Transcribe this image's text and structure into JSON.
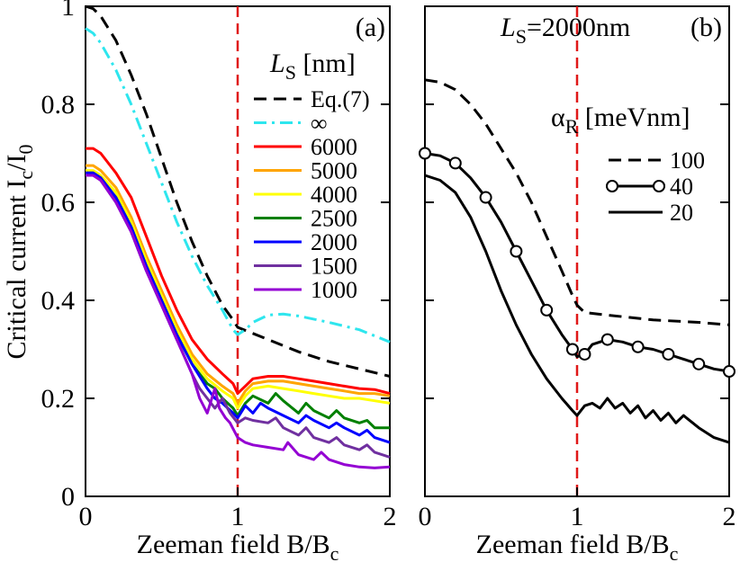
{
  "chart_data": [
    {
      "type": "line",
      "panel_label": "(a)",
      "xlabel_main": "Zeeman field B/B",
      "xlabel_sub": "c",
      "ylabel_main": "Critical current I",
      "ylabel_sub1": "c",
      "ylabel_mid": "/I",
      "ylabel_sub2": "0",
      "xlim": [
        0,
        2
      ],
      "ylim": [
        0,
        1
      ],
      "xticks": [
        0,
        1,
        2
      ],
      "yticks": [
        0,
        0.2,
        0.4,
        0.6,
        0.8,
        1
      ],
      "xtick_labels": [
        "0",
        "1",
        "2"
      ],
      "ytick_labels": [
        "0",
        "0.2",
        "0.4",
        "0.6",
        "0.8",
        "1"
      ],
      "vline_x": 1,
      "legend_title_main": "L",
      "legend_title_sub": "S",
      "legend_title_unit": " [nm]",
      "legend_position": "top-right",
      "series": [
        {
          "name": "Eq.(7)",
          "color": "#000000",
          "dash": "dash",
          "x": [
            0,
            0.05,
            0.1,
            0.2,
            0.3,
            0.4,
            0.5,
            0.6,
            0.7,
            0.8,
            0.9,
            0.97,
            1.0,
            1.2,
            1.4,
            1.6,
            1.8,
            2.0
          ],
          "y": [
            1.0,
            0.995,
            0.98,
            0.93,
            0.86,
            0.78,
            0.69,
            0.6,
            0.52,
            0.45,
            0.39,
            0.36,
            0.345,
            0.32,
            0.295,
            0.275,
            0.26,
            0.245
          ]
        },
        {
          "name": "∞",
          "color": "#2ee6ee",
          "dash": "dashdot",
          "x": [
            0,
            0.05,
            0.1,
            0.2,
            0.3,
            0.4,
            0.5,
            0.6,
            0.7,
            0.8,
            0.9,
            0.97,
            1.0,
            1.05,
            1.1,
            1.2,
            1.3,
            1.4,
            1.6,
            1.8,
            2.0
          ],
          "y": [
            0.955,
            0.945,
            0.925,
            0.87,
            0.8,
            0.72,
            0.64,
            0.56,
            0.49,
            0.43,
            0.38,
            0.34,
            0.33,
            0.34,
            0.355,
            0.37,
            0.372,
            0.368,
            0.355,
            0.34,
            0.315
          ]
        },
        {
          "name": "6000",
          "color": "#ff0000",
          "dash": "solid",
          "x": [
            0,
            0.05,
            0.1,
            0.2,
            0.3,
            0.4,
            0.5,
            0.6,
            0.7,
            0.8,
            0.9,
            0.97,
            1.0,
            1.05,
            1.1,
            1.2,
            1.3,
            1.4,
            1.5,
            1.6,
            1.7,
            1.8,
            1.9,
            2.0
          ],
          "y": [
            0.71,
            0.71,
            0.7,
            0.66,
            0.61,
            0.53,
            0.45,
            0.38,
            0.32,
            0.28,
            0.25,
            0.23,
            0.21,
            0.225,
            0.24,
            0.245,
            0.245,
            0.24,
            0.235,
            0.23,
            0.225,
            0.22,
            0.218,
            0.21
          ]
        },
        {
          "name": "5000",
          "color": "#ffa500",
          "dash": "solid",
          "x": [
            0,
            0.05,
            0.1,
            0.2,
            0.3,
            0.4,
            0.5,
            0.6,
            0.7,
            0.8,
            0.9,
            0.97,
            1.0,
            1.05,
            1.1,
            1.2,
            1.3,
            1.4,
            1.5,
            1.6,
            1.7,
            1.8,
            1.9,
            2.0
          ],
          "y": [
            0.675,
            0.675,
            0.665,
            0.63,
            0.57,
            0.49,
            0.42,
            0.35,
            0.29,
            0.25,
            0.225,
            0.21,
            0.19,
            0.215,
            0.23,
            0.235,
            0.235,
            0.23,
            0.225,
            0.22,
            0.215,
            0.21,
            0.21,
            0.205
          ]
        },
        {
          "name": "4000",
          "color": "#ffff00",
          "dash": "solid",
          "x": [
            0,
            0.05,
            0.1,
            0.2,
            0.3,
            0.4,
            0.5,
            0.6,
            0.7,
            0.8,
            0.9,
            0.97,
            1.0,
            1.05,
            1.1,
            1.2,
            1.3,
            1.4,
            1.5,
            1.6,
            1.7,
            1.8,
            1.9,
            2.0
          ],
          "y": [
            0.665,
            0.665,
            0.655,
            0.62,
            0.56,
            0.48,
            0.41,
            0.34,
            0.28,
            0.24,
            0.215,
            0.2,
            0.18,
            0.205,
            0.22,
            0.225,
            0.22,
            0.215,
            0.21,
            0.205,
            0.2,
            0.2,
            0.195,
            0.19
          ]
        },
        {
          "name": "2500",
          "color": "#008000",
          "dash": "solid",
          "x": [
            0,
            0.05,
            0.1,
            0.2,
            0.3,
            0.4,
            0.5,
            0.6,
            0.7,
            0.8,
            0.85,
            0.9,
            0.97,
            1.0,
            1.05,
            1.1,
            1.2,
            1.25,
            1.3,
            1.4,
            1.45,
            1.5,
            1.6,
            1.65,
            1.7,
            1.8,
            1.85,
            1.9,
            2.0
          ],
          "y": [
            0.66,
            0.66,
            0.65,
            0.61,
            0.55,
            0.47,
            0.4,
            0.33,
            0.27,
            0.23,
            0.22,
            0.2,
            0.18,
            0.165,
            0.19,
            0.205,
            0.19,
            0.21,
            0.195,
            0.17,
            0.19,
            0.175,
            0.16,
            0.175,
            0.16,
            0.15,
            0.155,
            0.14,
            0.14
          ]
        },
        {
          "name": "2000",
          "color": "#0000ff",
          "dash": "solid",
          "x": [
            0,
            0.05,
            0.1,
            0.2,
            0.3,
            0.4,
            0.5,
            0.6,
            0.7,
            0.8,
            0.85,
            0.9,
            0.97,
            1.0,
            1.05,
            1.1,
            1.15,
            1.2,
            1.3,
            1.4,
            1.45,
            1.5,
            1.6,
            1.65,
            1.7,
            1.8,
            1.85,
            1.9,
            2.0
          ],
          "y": [
            0.66,
            0.66,
            0.65,
            0.61,
            0.55,
            0.47,
            0.4,
            0.33,
            0.27,
            0.22,
            0.2,
            0.19,
            0.17,
            0.16,
            0.185,
            0.17,
            0.19,
            0.18,
            0.165,
            0.15,
            0.165,
            0.155,
            0.14,
            0.15,
            0.14,
            0.125,
            0.135,
            0.12,
            0.11
          ]
        },
        {
          "name": "1500",
          "color": "#7030a0",
          "dash": "solid",
          "x": [
            0,
            0.05,
            0.1,
            0.2,
            0.3,
            0.4,
            0.5,
            0.6,
            0.7,
            0.75,
            0.8,
            0.85,
            0.9,
            0.95,
            1.0,
            1.05,
            1.1,
            1.2,
            1.25,
            1.3,
            1.4,
            1.45,
            1.5,
            1.6,
            1.65,
            1.7,
            1.8,
            1.85,
            1.9,
            2.0
          ],
          "y": [
            0.655,
            0.655,
            0.645,
            0.6,
            0.54,
            0.46,
            0.39,
            0.32,
            0.25,
            0.22,
            0.2,
            0.18,
            0.2,
            0.17,
            0.15,
            0.16,
            0.155,
            0.15,
            0.16,
            0.14,
            0.125,
            0.14,
            0.12,
            0.11,
            0.12,
            0.105,
            0.095,
            0.105,
            0.09,
            0.08
          ]
        },
        {
          "name": "1000",
          "color": "#9400d3",
          "dash": "solid",
          "x": [
            0,
            0.05,
            0.1,
            0.2,
            0.3,
            0.4,
            0.5,
            0.6,
            0.7,
            0.75,
            0.8,
            0.85,
            0.88,
            0.92,
            0.95,
            1.0,
            1.05,
            1.1,
            1.2,
            1.3,
            1.33,
            1.4,
            1.5,
            1.55,
            1.6,
            1.7,
            1.8,
            1.9,
            2.0
          ],
          "y": [
            0.655,
            0.655,
            0.645,
            0.6,
            0.54,
            0.46,
            0.39,
            0.32,
            0.25,
            0.2,
            0.17,
            0.22,
            0.18,
            0.16,
            0.15,
            0.12,
            0.11,
            0.105,
            0.1,
            0.095,
            0.11,
            0.085,
            0.075,
            0.09,
            0.075,
            0.065,
            0.06,
            0.058,
            0.06
          ]
        }
      ]
    },
    {
      "type": "line",
      "panel_label": "(b)",
      "annotation_main": "L",
      "annotation_sub": "S",
      "annotation_rest": "=2000nm",
      "xlabel_main": "Zeeman field B/B",
      "xlabel_sub": "c",
      "xlim": [
        0,
        2
      ],
      "ylim": [
        0,
        1
      ],
      "xticks": [
        0,
        1,
        2
      ],
      "xtick_labels": [
        "0",
        "1",
        "2"
      ],
      "vline_x": 1,
      "legend_title_main": "α",
      "legend_title_sub": "R",
      "legend_title_unit": " [meVnm]",
      "legend_position": "top-right",
      "series": [
        {
          "name": "100",
          "color": "#000000",
          "dash": "dash",
          "markers": false,
          "x": [
            0,
            0.1,
            0.2,
            0.3,
            0.4,
            0.5,
            0.6,
            0.7,
            0.8,
            0.9,
            0.97,
            1.0,
            1.05,
            1.2,
            1.5,
            1.8,
            2.0
          ],
          "y": [
            0.85,
            0.845,
            0.83,
            0.8,
            0.76,
            0.71,
            0.66,
            0.6,
            0.53,
            0.46,
            0.41,
            0.39,
            0.375,
            0.37,
            0.36,
            0.355,
            0.35
          ]
        },
        {
          "name": "40",
          "color": "#000000",
          "dash": "solid",
          "markers": true,
          "x": [
            0,
            0.1,
            0.2,
            0.3,
            0.4,
            0.5,
            0.6,
            0.7,
            0.8,
            0.9,
            0.97,
            1.0,
            1.05,
            1.1,
            1.2,
            1.3,
            1.4,
            1.5,
            1.6,
            1.7,
            1.8,
            1.9,
            2.0
          ],
          "y": [
            0.7,
            0.695,
            0.68,
            0.65,
            0.61,
            0.56,
            0.5,
            0.44,
            0.38,
            0.33,
            0.3,
            0.285,
            0.29,
            0.31,
            0.32,
            0.315,
            0.305,
            0.3,
            0.29,
            0.28,
            0.27,
            0.26,
            0.255
          ]
        },
        {
          "name": "20",
          "color": "#000000",
          "dash": "solid",
          "markers": false,
          "x": [
            0,
            0.1,
            0.2,
            0.3,
            0.4,
            0.5,
            0.6,
            0.7,
            0.8,
            0.9,
            0.97,
            1.0,
            1.05,
            1.1,
            1.15,
            1.2,
            1.25,
            1.3,
            1.35,
            1.4,
            1.45,
            1.5,
            1.55,
            1.6,
            1.65,
            1.7,
            1.8,
            1.9,
            2.0
          ],
          "y": [
            0.655,
            0.645,
            0.62,
            0.57,
            0.5,
            0.42,
            0.35,
            0.29,
            0.24,
            0.2,
            0.175,
            0.165,
            0.185,
            0.19,
            0.18,
            0.2,
            0.18,
            0.19,
            0.17,
            0.185,
            0.16,
            0.175,
            0.155,
            0.17,
            0.15,
            0.165,
            0.14,
            0.12,
            0.11
          ]
        }
      ]
    }
  ]
}
